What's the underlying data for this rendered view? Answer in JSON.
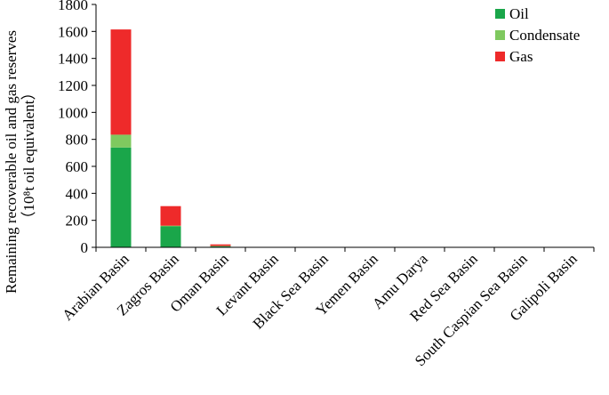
{
  "chart_data": {
    "type": "bar",
    "stacked": true,
    "categories": [
      "Arabian Basin",
      "Zagros Basin",
      "Oman Basin",
      "Levant Basin",
      "Black Sea Basin",
      "Yemen Basin",
      "Amu Darya",
      "Red Sea Basin",
      "South Caspian Sea Basin",
      "Galipoli Basin"
    ],
    "series": [
      {
        "name": "Oil",
        "color": "#1aa64a",
        "values": [
          740,
          155,
          8,
          0,
          0,
          0,
          0,
          0,
          0,
          0
        ]
      },
      {
        "name": "Condensate",
        "color": "#7fc95f",
        "values": [
          95,
          5,
          2,
          0,
          0,
          0,
          0,
          0,
          0,
          0
        ]
      },
      {
        "name": "Gas",
        "color": "#ee2a2a",
        "values": [
          780,
          145,
          12,
          0,
          0,
          0,
          0,
          0,
          0,
          0
        ]
      }
    ],
    "ylabel_line1": "Remaining recoverable oil and  gas reserves",
    "ylabel_line2": "（10⁸t oil equivalent）",
    "ylim": [
      0,
      1800
    ],
    "yticks": [
      0,
      200,
      400,
      600,
      800,
      1000,
      1200,
      1400,
      1600,
      1800
    ],
    "legend_position": "top-right",
    "grid": false
  }
}
